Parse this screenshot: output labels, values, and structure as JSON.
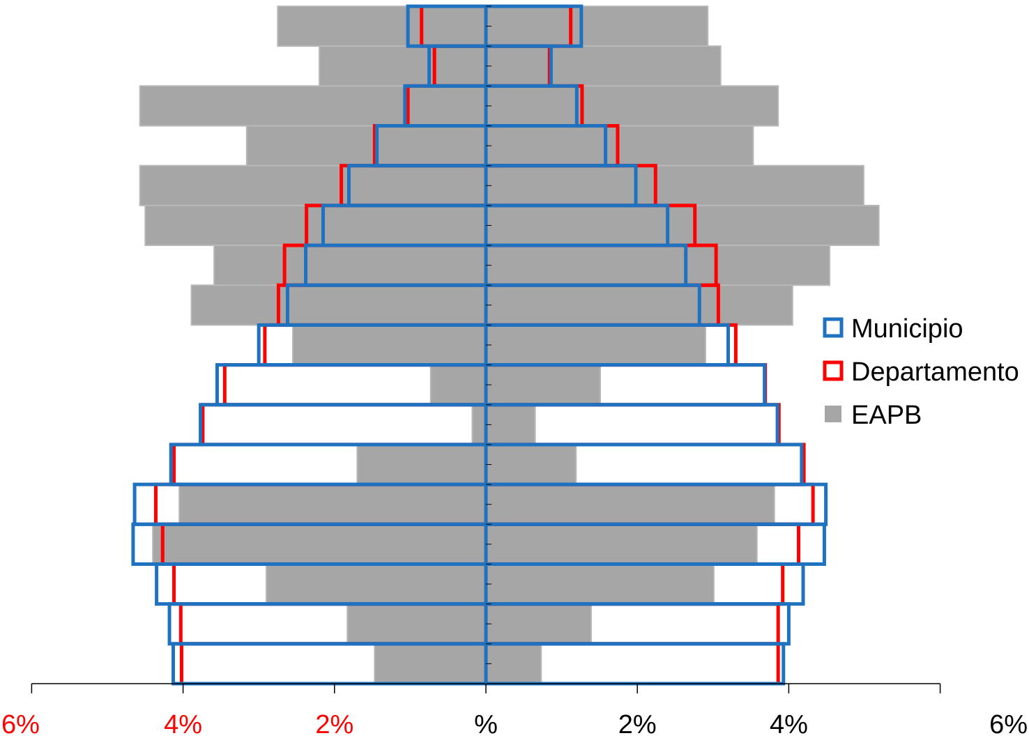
{
  "chart_data": {
    "type": "bar",
    "subtype": "population-pyramid",
    "title": "",
    "xlabel": "",
    "ylabel": "",
    "xlim": [
      -6,
      6
    ],
    "x_ticks": [
      {
        "value": -6,
        "label": "6%",
        "color": "#ff0000"
      },
      {
        "value": -4,
        "label": "4%",
        "color": "#ff0000"
      },
      {
        "value": -2,
        "label": "2%",
        "color": "#ff0000"
      },
      {
        "value": 0,
        "label": "%",
        "color": "#000000"
      },
      {
        "value": 2,
        "label": "2%",
        "color": "#000000"
      },
      {
        "value": 4,
        "label": "4%",
        "color": "#000000"
      },
      {
        "value": 6,
        "label": "6%",
        "color": "#000000"
      }
    ],
    "age_groups_count": 17,
    "order": "top-to-bottom (oldest at top, youngest at bottom)",
    "series": [
      {
        "name": "Municipio",
        "color": "#1f72c0",
        "style": "outline",
        "left": [
          1.03,
          0.75,
          1.07,
          1.44,
          1.81,
          2.15,
          2.38,
          2.62,
          3.0,
          3.55,
          3.77,
          4.16,
          4.64,
          4.66,
          4.35,
          4.18,
          4.13
        ],
        "right": [
          1.26,
          0.86,
          1.2,
          1.58,
          1.98,
          2.4,
          2.64,
          2.82,
          3.2,
          3.68,
          3.85,
          4.17,
          4.49,
          4.47,
          4.19,
          4.0,
          3.93
        ]
      },
      {
        "name": "Departamento",
        "color": "#ff0000",
        "style": "outline",
        "left": [
          0.85,
          0.68,
          1.03,
          1.47,
          1.91,
          2.37,
          2.66,
          2.74,
          2.92,
          3.45,
          3.74,
          4.12,
          4.36,
          4.27,
          4.12,
          4.03,
          4.02
        ],
        "right": [
          1.12,
          0.84,
          1.27,
          1.74,
          2.24,
          2.76,
          3.04,
          3.07,
          3.3,
          3.69,
          3.87,
          4.2,
          4.32,
          4.13,
          3.92,
          3.86,
          3.86
        ]
      },
      {
        "name": "EAPB",
        "color": "#a6a6a6",
        "style": "filled",
        "left": [
          2.75,
          2.2,
          4.57,
          3.16,
          4.57,
          4.5,
          3.59,
          3.89,
          2.55,
          0.73,
          0.18,
          1.7,
          4.05,
          4.4,
          2.9,
          1.83,
          1.47
        ],
        "right": [
          2.93,
          3.1,
          3.86,
          3.53,
          4.99,
          5.19,
          4.54,
          4.05,
          2.9,
          1.51,
          0.65,
          1.19,
          3.81,
          3.58,
          3.01,
          1.39,
          0.73
        ]
      }
    ],
    "legend": {
      "placement": "right",
      "entries": [
        {
          "label": "Municipio",
          "color": "#1f72c0",
          "style": "outline"
        },
        {
          "label": "Departamento",
          "color": "#ff0000",
          "style": "outline"
        },
        {
          "label": "EAPB",
          "color": "#a6a6a6",
          "style": "filled"
        }
      ]
    }
  }
}
